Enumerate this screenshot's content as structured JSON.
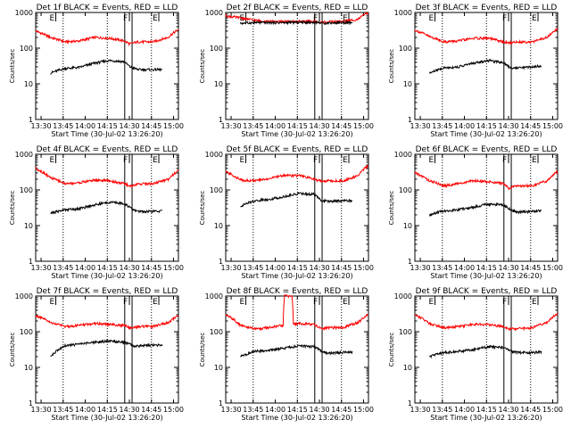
{
  "colors": {
    "events": "#000000",
    "lld": "#ff0000",
    "axis": "#000000",
    "background": "#ffffff"
  },
  "shared": {
    "ylabel": "Counts/sec",
    "xlabel": "Start Time (30-Jul-02 13:26:20)",
    "x_ticks": [
      "13:30",
      "13:45",
      "14:00",
      "14:15",
      "14:30",
      "14:45",
      "15:00"
    ],
    "y_ticks": [
      "1",
      "10",
      "100",
      "1000"
    ],
    "markers": [
      {
        "label": "E",
        "time_min": 13.67
      },
      {
        "label": "F",
        "time_min": 63.67
      },
      {
        "label": "E",
        "time_min": 83.67
      }
    ],
    "vlines_min": [
      60.5,
      65.5
    ]
  },
  "chart_data": [
    {
      "type": "line",
      "title": "Det 1f BLACK = Events, RED = LLD",
      "xlim": [
        0,
        97
      ],
      "ylim": [
        1,
        1000
      ],
      "yscale": "log",
      "series": [
        {
          "x": [
            0,
            10,
            20,
            30,
            40,
            50,
            60,
            64,
            66,
            70,
            80,
            90,
            97
          ],
          "values": [
            300,
            200,
            150,
            160,
            200,
            190,
            160,
            130,
            140,
            150,
            150,
            200,
            330
          ]
        },
        {
          "x": [
            10,
            20,
            30,
            40,
            50,
            60,
            64,
            66,
            70,
            80,
            86
          ],
          "values": [
            20,
            27,
            29,
            38,
            45,
            42,
            30,
            28,
            25,
            25,
            25
          ]
        }
      ]
    },
    {
      "type": "line",
      "title": "Det 2f BLACK = Events, RED = LLD",
      "xlim": [
        0,
        97
      ],
      "ylim": [
        1,
        1000
      ],
      "yscale": "log",
      "series": [
        {
          "x": [
            0,
            10,
            20,
            30,
            40,
            50,
            60,
            64,
            66,
            70,
            80,
            90,
            97
          ],
          "values": [
            800,
            700,
            600,
            560,
            550,
            560,
            560,
            520,
            540,
            550,
            560,
            650,
            1000
          ]
        },
        {
          "x": [
            10,
            20,
            30,
            40,
            50,
            60,
            64,
            66,
            70,
            80,
            86
          ],
          "values": [
            500,
            520,
            520,
            520,
            530,
            530,
            520,
            500,
            510,
            520,
            510
          ]
        }
      ]
    },
    {
      "type": "line",
      "title": "Det 3f BLACK = Events, RED = LLD",
      "xlim": [
        0,
        97
      ],
      "ylim": [
        1,
        1000
      ],
      "yscale": "log",
      "series": [
        {
          "x": [
            0,
            10,
            20,
            30,
            40,
            50,
            60,
            64,
            66,
            70,
            80,
            90,
            97
          ],
          "values": [
            320,
            210,
            150,
            160,
            190,
            190,
            150,
            140,
            145,
            150,
            150,
            200,
            340
          ]
        },
        {
          "x": [
            10,
            20,
            30,
            40,
            50,
            60,
            64,
            66,
            70,
            80,
            86
          ],
          "values": [
            20,
            28,
            30,
            38,
            45,
            40,
            30,
            28,
            28,
            30,
            32
          ]
        }
      ]
    },
    {
      "type": "line",
      "title": "Det 4f BLACK = Events, RED = LLD",
      "xlim": [
        0,
        97
      ],
      "ylim": [
        1,
        1000
      ],
      "yscale": "log",
      "series": [
        {
          "x": [
            0,
            10,
            20,
            30,
            40,
            50,
            60,
            64,
            66,
            70,
            80,
            90,
            97
          ],
          "values": [
            400,
            220,
            150,
            160,
            190,
            180,
            150,
            130,
            130,
            150,
            150,
            200,
            350
          ]
        },
        {
          "x": [
            10,
            20,
            30,
            40,
            50,
            60,
            64,
            66,
            70,
            80,
            86
          ],
          "values": [
            22,
            28,
            30,
            38,
            45,
            42,
            32,
            28,
            25,
            25,
            26
          ]
        }
      ]
    },
    {
      "type": "line",
      "title": "Det 5f BLACK = Events, RED = LLD",
      "xlim": [
        0,
        97
      ],
      "ylim": [
        1,
        1000
      ],
      "yscale": "log",
      "series": [
        {
          "x": [
            0,
            10,
            20,
            30,
            40,
            50,
            60,
            64,
            66,
            70,
            80,
            90,
            97
          ],
          "values": [
            320,
            190,
            180,
            210,
            260,
            250,
            200,
            180,
            180,
            180,
            180,
            250,
            500
          ]
        },
        {
          "x": [
            10,
            20,
            30,
            40,
            50,
            60,
            64,
            66,
            70,
            80,
            86
          ],
          "values": [
            35,
            50,
            55,
            65,
            80,
            75,
            55,
            50,
            48,
            50,
            50
          ]
        }
      ]
    },
    {
      "type": "line",
      "title": "Det 6f BLACK = Events, RED = LLD",
      "xlim": [
        0,
        97
      ],
      "ylim": [
        1,
        1000
      ],
      "yscale": "log",
      "series": [
        {
          "x": [
            0,
            10,
            20,
            30,
            40,
            50,
            60,
            64,
            66,
            70,
            80,
            90,
            97
          ],
          "values": [
            300,
            180,
            130,
            150,
            180,
            170,
            150,
            110,
            120,
            130,
            130,
            180,
            330
          ]
        },
        {
          "x": [
            10,
            20,
            30,
            40,
            50,
            60,
            64,
            66,
            70,
            80,
            86
          ],
          "values": [
            20,
            26,
            28,
            33,
            40,
            38,
            30,
            26,
            24,
            25,
            26
          ]
        }
      ]
    },
    {
      "type": "line",
      "title": "Det 7f BLACK = Events, RED = LLD",
      "xlim": [
        0,
        97
      ],
      "ylim": [
        1,
        1000
      ],
      "yscale": "log",
      "series": [
        {
          "x": [
            0,
            10,
            20,
            30,
            40,
            50,
            60,
            64,
            66,
            70,
            80,
            90,
            97
          ],
          "values": [
            280,
            180,
            140,
            150,
            170,
            160,
            150,
            130,
            130,
            140,
            140,
            180,
            280
          ]
        },
        {
          "x": [
            10,
            20,
            30,
            40,
            50,
            60,
            64,
            66,
            70,
            80,
            86
          ],
          "values": [
            20,
            40,
            45,
            50,
            55,
            50,
            45,
            40,
            40,
            42,
            42
          ]
        }
      ]
    },
    {
      "type": "line",
      "title": "Det 8f BLACK = Events, RED = LLD",
      "xlim": [
        0,
        97
      ],
      "ylim": [
        1,
        1000
      ],
      "yscale": "log",
      "series": [
        {
          "x": [
            0,
            10,
            20,
            30,
            39,
            40,
            45,
            46,
            50,
            60,
            64,
            66,
            70,
            80,
            90,
            97
          ],
          "values": [
            300,
            150,
            120,
            130,
            150,
            1000,
            1000,
            160,
            170,
            160,
            130,
            120,
            130,
            130,
            180,
            300
          ]
        },
        {
          "x": [
            10,
            20,
            30,
            40,
            50,
            60,
            64,
            66,
            70,
            80,
            86
          ],
          "values": [
            20,
            28,
            30,
            35,
            40,
            38,
            30,
            27,
            25,
            26,
            27
          ]
        }
      ]
    },
    {
      "type": "line",
      "title": "Det 9f BLACK = Events, RED = LLD",
      "xlim": [
        0,
        97
      ],
      "ylim": [
        1,
        1000
      ],
      "yscale": "log",
      "series": [
        {
          "x": [
            0,
            10,
            20,
            30,
            40,
            50,
            60,
            64,
            66,
            70,
            80,
            90,
            97
          ],
          "values": [
            300,
            170,
            130,
            140,
            160,
            160,
            140,
            120,
            120,
            120,
            130,
            180,
            320
          ]
        },
        {
          "x": [
            10,
            20,
            30,
            40,
            50,
            60,
            64,
            66,
            70,
            80,
            86
          ],
          "values": [
            20,
            26,
            28,
            32,
            38,
            36,
            30,
            28,
            26,
            26,
            27
          ]
        }
      ]
    }
  ]
}
